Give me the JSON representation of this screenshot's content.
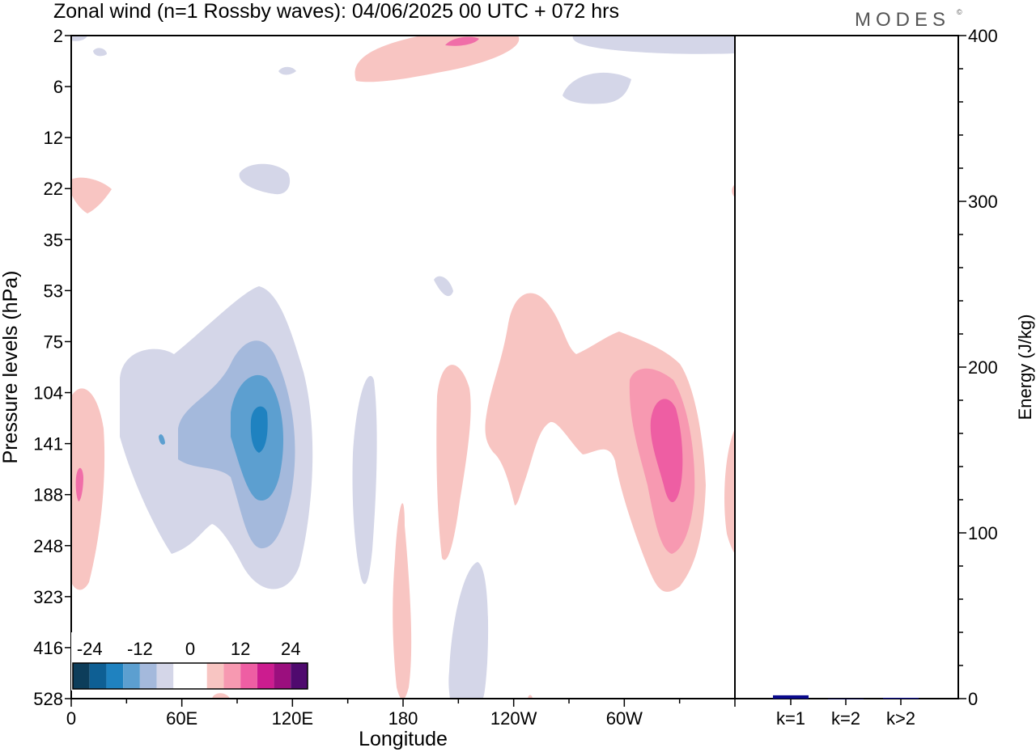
{
  "header": {
    "title": "Zonal wind (n=1 Rossby waves):  04/06/2025  00 UTC  + 072 hrs",
    "logo_text": "MODES",
    "logo_mark": "©"
  },
  "chart_data": [
    {
      "type": "heatmap",
      "title": "Zonal wind (n=1 Rossby waves):  04/06/2025  00 UTC  + 072 hrs",
      "xlabel": "Longitude",
      "ylabel": "Pressure levels (hPa)",
      "x_ticks": [
        "0",
        "60E",
        "120E",
        "180",
        "120W",
        "60W"
      ],
      "y_ticks": [
        "2",
        "6",
        "12",
        "22",
        "35",
        "53",
        "75",
        "104",
        "141",
        "188",
        "248",
        "323",
        "416",
        "528"
      ],
      "y_scale": "categorical pressure levels, top to bottom",
      "xlim": [
        0,
        360
      ],
      "colorbar": {
        "tick_labels": [
          "-24",
          "-12",
          "0",
          "12",
          "24"
        ],
        "colors": [
          "#0d3d5a",
          "#0e5f94",
          "#1f82c0",
          "#5c9fd0",
          "#a4b9dc",
          "#d4d6e8",
          "#ffffff",
          "#ffffff",
          "#f8c5c2",
          "#f799b1",
          "#ee5ea3",
          "#cc1c8f",
          "#9b0f7e",
          "#4f0a6e"
        ]
      },
      "features": [
        {
          "sign": "negative",
          "peak": -24,
          "center_lon": 100,
          "center_level": "141"
        },
        {
          "sign": "positive",
          "peak": 18,
          "center_lon": 298,
          "center_level": "141"
        },
        {
          "sign": "positive",
          "peak": 12,
          "center_lon": 5,
          "center_level": "188"
        },
        {
          "sign": "positive",
          "peak": 12,
          "center_lon": 220,
          "center_level": "2"
        }
      ]
    },
    {
      "type": "bar",
      "categories": [
        "k=1",
        "k=2",
        "k>2"
      ],
      "values": [
        2,
        0,
        0.5
      ],
      "ylabel": "Energy (J/kg)",
      "ylim": [
        0,
        400
      ],
      "y_ticks": [
        "0",
        "100",
        "200",
        "300",
        "400"
      ],
      "bar_color": "#0a0a8c"
    }
  ]
}
